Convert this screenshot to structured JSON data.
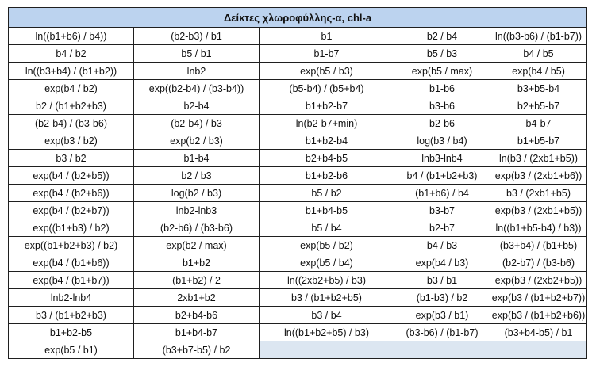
{
  "title": "Δείκτες χλωροφύλλης-α, chl-a",
  "rows": [
    [
      "ln((b1+b6) / b4))",
      "(b2-b3) / b1",
      "b1",
      "b2 / b4",
      "ln((b3-b6) / (b1-b7))"
    ],
    [
      "b4 / b2",
      "b5 / b1",
      "b1-b7",
      "b5 / b3",
      "b4 / b5"
    ],
    [
      "ln((b3+b4) / (b1+b2))",
      "lnb2",
      "exp(b5 / b3)",
      "exp(b5 / max)",
      "exp(b4 / b5)"
    ],
    [
      "exp(b4 / b2)",
      "exp((b2-b4) / (b3-b4))",
      "(b5-b4) / (b5+b4)",
      "b1-b6",
      "b3+b5-b4"
    ],
    [
      "b2 / (b1+b2+b3)",
      "b2-b4",
      "b1+b2-b7",
      "b3-b6",
      "b2+b5-b7"
    ],
    [
      "(b2-b4) / (b3-b6)",
      "(b2-b4) / b3",
      "ln(b2-b7+min)",
      "b2-b6",
      "b4-b7"
    ],
    [
      "exp(b3 / b2)",
      "exp(b2 / b3)",
      "b1+b2-b4",
      "log(b3 / b4)",
      "b1+b5-b7"
    ],
    [
      "b3 / b2",
      "b1-b4",
      "b2+b4-b5",
      "lnb3-lnb4",
      "ln(b3 / (2xb1+b5))"
    ],
    [
      "exp(b4 / (b2+b5))",
      "b2 / b3",
      "b1+b2-b6",
      "b4 / (b1+b2+b3)",
      "exp(b3 / (2xb1+b6))"
    ],
    [
      "exp(b4 / (b2+b6))",
      "log(b2 / b3)",
      "b5 / b2",
      "(b1+b6) / b4",
      "b3 / (2xb1+b5)"
    ],
    [
      "exp(b4 / (b2+b7))",
      "lnb2-lnb3",
      "b1+b4-b5",
      "b3-b7",
      "exp(b3 / (2xb1+b5))"
    ],
    [
      "exp((b1+b3) / b2)",
      "(b2-b6) / (b3-b6)",
      "b5 / b4",
      "b2-b7",
      "ln((b1+b5-b4) / b3))"
    ],
    [
      "exp((b1+b2+b3) / b2)",
      "exp(b2 / max)",
      "exp(b5 / b2)",
      "b4 / b3",
      "(b3+b4) / (b1+b5)"
    ],
    [
      "exp(b4 / (b1+b6))",
      "b1+b2",
      "exp(b5 / b4)",
      "exp(b4 / b3)",
      "(b2-b7) / (b3-b6)"
    ],
    [
      "exp(b4 / (b1+b7))",
      "(b1+b2) / 2",
      "ln((2xb2+b5) / b3)",
      "b3 / b1",
      "exp(b3 / (2xb2+b5))"
    ],
    [
      "lnb2-lnb4",
      "2xb1+b2",
      "b3 / (b1+b2+b5)",
      "(b1-b3) / b2",
      "exp(b3 / (b1+b2+b7))"
    ],
    [
      "b3 / (b1+b2+b3)",
      "b2+b4-b6",
      "b3 / b4",
      "exp(b3 / b1)",
      "exp(b3 / (b1+b2+b6))"
    ],
    [
      "b1+b2-b5",
      "b1+b4-b7",
      "ln((b1+b2+b5) / b3)",
      "(b3-b6) / (b1-b7)",
      "(b3+b4-b5) / b1"
    ],
    [
      "exp(b5 / b1)",
      "(b3+b7-b5) / b2",
      "",
      "",
      ""
    ]
  ]
}
